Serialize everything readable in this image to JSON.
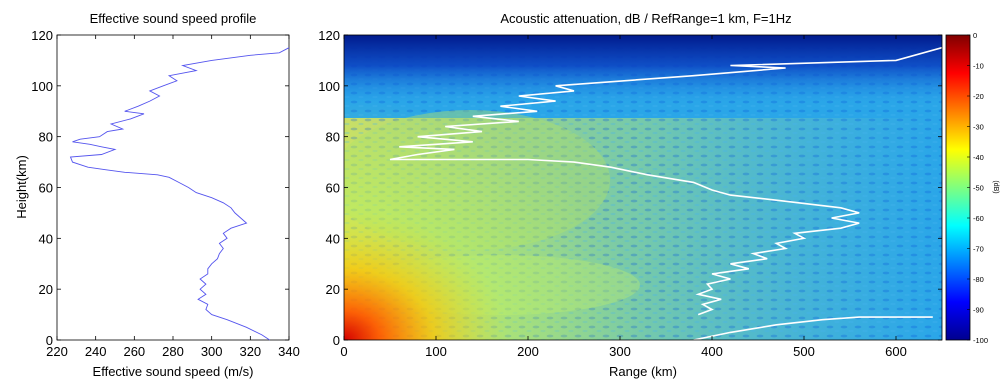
{
  "chart_data": [
    {
      "type": "line",
      "title": "Effective sound speed profile",
      "xlabel": "Effective sound speed (m/s)",
      "ylabel": "Height(km)",
      "xlim": [
        220,
        340
      ],
      "ylim": [
        0,
        120
      ],
      "xticks": [
        220,
        240,
        260,
        280,
        300,
        320,
        340
      ],
      "yticks": [
        0,
        20,
        40,
        60,
        80,
        100,
        120
      ],
      "grid": false,
      "series_color": "#5555ee",
      "points": [
        [
          330,
          0
        ],
        [
          326,
          2
        ],
        [
          318,
          5
        ],
        [
          308,
          8
        ],
        [
          300,
          10
        ],
        [
          297,
          12
        ],
        [
          298,
          14
        ],
        [
          293,
          16
        ],
        [
          297,
          18
        ],
        [
          294,
          20
        ],
        [
          297,
          22
        ],
        [
          294,
          24
        ],
        [
          298,
          26
        ],
        [
          298,
          28
        ],
        [
          300,
          30
        ],
        [
          303,
          32
        ],
        [
          304,
          34
        ],
        [
          306,
          36
        ],
        [
          304,
          38
        ],
        [
          308,
          40
        ],
        [
          306,
          42
        ],
        [
          310,
          44
        ],
        [
          318,
          46
        ],
        [
          315,
          48
        ],
        [
          312,
          50
        ],
        [
          310,
          52
        ],
        [
          306,
          54
        ],
        [
          300,
          56
        ],
        [
          292,
          58
        ],
        [
          288,
          60
        ],
        [
          283,
          62
        ],
        [
          278,
          64
        ],
        [
          272,
          65
        ],
        [
          255,
          66
        ],
        [
          245,
          67
        ],
        [
          236,
          68
        ],
        [
          228,
          70
        ],
        [
          227,
          72
        ],
        [
          243,
          73
        ],
        [
          250,
          75
        ],
        [
          243,
          76
        ],
        [
          237,
          77
        ],
        [
          228,
          78
        ],
        [
          232,
          79
        ],
        [
          242,
          80
        ],
        [
          246,
          82
        ],
        [
          254,
          83
        ],
        [
          248,
          85
        ],
        [
          258,
          87
        ],
        [
          265,
          89
        ],
        [
          255,
          90
        ],
        [
          262,
          92
        ],
        [
          268,
          94
        ],
        [
          273,
          96
        ],
        [
          268,
          98
        ],
        [
          275,
          100
        ],
        [
          282,
          102
        ],
        [
          278,
          104
        ],
        [
          292,
          106
        ],
        [
          285,
          108
        ],
        [
          300,
          110
        ],
        [
          320,
          112
        ],
        [
          335,
          113
        ],
        [
          340,
          115
        ]
      ]
    },
    {
      "type": "heatmap",
      "title": "Acoustic attenuation, dB / RefRange=1 km, F=1Hz",
      "xlabel": "Range (km)",
      "ylabel": "",
      "xlim": [
        0,
        650
      ],
      "ylim": [
        0,
        120
      ],
      "xticks": [
        0,
        100,
        200,
        300,
        400,
        500,
        600
      ],
      "yticks": [
        0,
        20,
        40,
        60,
        80,
        100,
        120
      ],
      "colorbar": {
        "label": "(dB)",
        "range": [
          -100,
          0
        ],
        "ticks": [
          0,
          -10,
          -20,
          -30,
          -40,
          -50,
          -60,
          -70,
          -80,
          -90,
          -100
        ],
        "colormap": "jet"
      },
      "overlay_color": "#ffffff",
      "overlay": [
        [
          380,
          0
        ],
        [
          420,
          3
        ],
        [
          470,
          6
        ],
        [
          520,
          8
        ],
        [
          560,
          9
        ],
        [
          600,
          9
        ],
        [
          640,
          9
        ]
      ],
      "overlay_structure": [
        [
          385,
          10
        ],
        [
          400,
          12
        ],
        [
          390,
          14
        ],
        [
          410,
          16
        ],
        [
          385,
          18
        ],
        [
          400,
          20
        ],
        [
          395,
          22
        ],
        [
          420,
          24
        ],
        [
          400,
          26
        ],
        [
          440,
          28
        ],
        [
          420,
          30
        ],
        [
          460,
          32
        ],
        [
          445,
          34
        ],
        [
          480,
          36
        ],
        [
          470,
          38
        ],
        [
          500,
          40
        ],
        [
          490,
          42
        ],
        [
          540,
          44
        ],
        [
          560,
          46
        ],
        [
          530,
          48
        ],
        [
          560,
          50
        ],
        [
          540,
          52
        ],
        [
          470,
          55
        ],
        [
          420,
          57
        ],
        [
          400,
          59
        ],
        [
          380,
          62
        ],
        [
          330,
          65
        ],
        [
          290,
          68
        ],
        [
          250,
          70
        ],
        [
          200,
          71
        ],
        [
          50,
          71
        ],
        [
          80,
          73
        ],
        [
          120,
          75
        ],
        [
          60,
          76
        ],
        [
          100,
          77
        ],
        [
          140,
          78
        ],
        [
          80,
          80
        ],
        [
          150,
          82
        ],
        [
          110,
          84
        ],
        [
          190,
          86
        ],
        [
          140,
          88
        ],
        [
          210,
          90
        ],
        [
          170,
          92
        ],
        [
          230,
          94
        ],
        [
          190,
          96
        ],
        [
          250,
          98
        ],
        [
          230,
          100
        ],
        [
          380,
          104
        ],
        [
          480,
          107
        ],
        [
          420,
          108
        ],
        [
          600,
          110
        ],
        [
          650,
          115
        ]
      ]
    }
  ]
}
